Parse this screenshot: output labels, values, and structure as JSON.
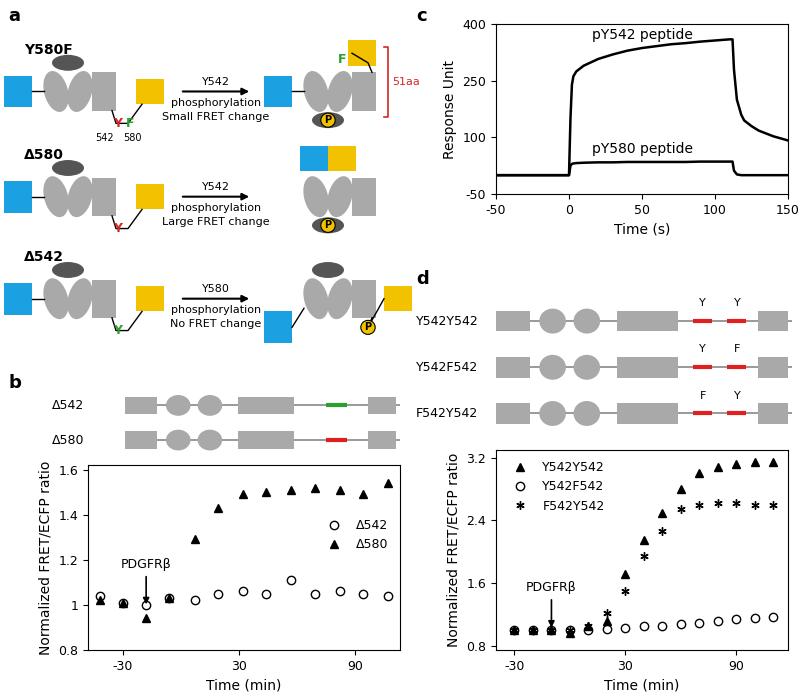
{
  "diagram": {
    "panel_labels": [
      "a",
      "b",
      "c",
      "d"
    ],
    "a": {
      "rows": [
        {
          "name": "Y580F",
          "sites": [
            "542",
            "580"
          ],
          "mutation": "F",
          "mark": "Y",
          "mark_color": "#d62728",
          "arrow_above": "Y542",
          "arrow_below": [
            "phosphorylation",
            "Small FRET change"
          ],
          "linker": "51aa",
          "phospho": "P"
        },
        {
          "name": "Δ580",
          "mark": "Y",
          "mark_color": "#d62728",
          "arrow_above": "Y542",
          "arrow_below": [
            "phosphorylation",
            "Large FRET change"
          ],
          "phospho": "P"
        },
        {
          "name": "Δ542",
          "mark": "Y",
          "mark_color": "#2ca02c",
          "arrow_above": "Y580",
          "arrow_below": [
            "phosphorylation",
            "No FRET change"
          ],
          "phospho": "P"
        }
      ]
    },
    "b": {
      "rows": [
        {
          "name": "Δ542",
          "color": "#2ca02c"
        },
        {
          "name": "Δ580",
          "color": "#e02020"
        }
      ]
    },
    "d": {
      "rows": [
        {
          "name": "Y542Y542",
          "sites": [
            "Y",
            "Y"
          ]
        },
        {
          "name": "Y542F542",
          "sites": [
            "Y",
            "F"
          ]
        },
        {
          "name": "F542Y542",
          "sites": [
            "F",
            "Y"
          ]
        }
      ]
    }
  },
  "chart_data": [
    {
      "type": "scatter",
      "x_label": "Time (min)",
      "y_label": "Normalized FRET/ECFP ratio",
      "x": [
        -42,
        -30,
        -18,
        -6,
        7,
        19,
        32,
        44,
        57,
        69,
        82,
        94,
        107
      ],
      "xlim": [
        -48,
        113
      ],
      "xticks": [
        -30,
        30,
        90
      ],
      "ylim": [
        0.8,
        1.62
      ],
      "yticks": [
        0.8,
        1,
        1.2,
        1.4,
        1.6
      ],
      "legend": "center right",
      "annotations": [
        {
          "text": "PDGFRβ",
          "x": -18,
          "y": 0.99
        }
      ],
      "series": [
        {
          "name": "Δ542",
          "color": "#000000",
          "marker": "circle_open",
          "values": [
            1.04,
            1.01,
            1.0,
            1.03,
            1.02,
            1.05,
            1.06,
            1.05,
            1.11,
            1.05,
            1.06,
            1.05,
            1.04
          ]
        },
        {
          "name": "Δ580",
          "color": "#000000",
          "marker": "triangle",
          "values": [
            1.02,
            1.01,
            0.94,
            1.03,
            1.29,
            1.43,
            1.49,
            1.5,
            1.51,
            1.52,
            1.51,
            1.49,
            1.54
          ]
        }
      ]
    },
    {
      "type": "line",
      "x_label": "Time (s)",
      "y_label": "Response Unit",
      "x": [
        -50,
        -25,
        -1,
        0,
        1,
        2,
        3,
        5,
        10,
        20,
        30,
        40,
        50,
        60,
        70,
        80,
        90,
        100,
        110,
        112,
        113,
        115,
        118,
        120,
        125,
        130,
        140,
        150
      ],
      "xlim": [
        -50,
        150
      ],
      "xticks": [
        -50,
        0,
        50,
        100,
        150
      ],
      "ylim": [
        -50,
        400
      ],
      "yticks": [
        -50,
        100,
        250,
        400
      ],
      "series": [
        {
          "name": "pY542 peptide",
          "color": "#000000",
          "values": [
            0,
            0,
            0,
            0,
            150,
            240,
            262,
            275,
            290,
            308,
            320,
            330,
            337,
            342,
            347,
            350,
            354,
            357,
            360,
            360,
            280,
            200,
            160,
            145,
            130,
            118,
            103,
            92
          ]
        },
        {
          "name": "pY580 peptide",
          "color": "#000000",
          "values": [
            0,
            0,
            0,
            0,
            25,
            30,
            31,
            32,
            33,
            34,
            34,
            35,
            35,
            35,
            35,
            35,
            36,
            36,
            36,
            36,
            12,
            2,
            0,
            0,
            0,
            0,
            0,
            0
          ]
        }
      ]
    },
    {
      "type": "scatter",
      "x_label": "Time (min)",
      "y_label": "Normalized FRET/ECFP ratio",
      "x": [
        -30,
        -20,
        -10,
        0,
        10,
        20,
        30,
        40,
        50,
        60,
        70,
        80,
        90,
        100,
        110
      ],
      "xlim": [
        -40,
        118
      ],
      "xticks": [
        -30,
        30,
        90
      ],
      "ylim": [
        0.75,
        3.3
      ],
      "yticks": [
        0.8,
        1.6,
        2.4,
        3.2
      ],
      "legend": "upper left",
      "annotations": [
        {
          "text": "PDGFRβ",
          "x": -10,
          "y": 1.0
        }
      ],
      "series": [
        {
          "name": "Y542Y542",
          "color": "#000000",
          "marker": "triangle",
          "values": [
            1.0,
            1.0,
            1.0,
            0.97,
            1.05,
            1.12,
            1.72,
            2.15,
            2.5,
            2.8,
            3.0,
            3.08,
            3.12,
            3.15,
            3.15
          ]
        },
        {
          "name": "Y542F542",
          "color": "#000000",
          "marker": "circle_open",
          "values": [
            1.0,
            1.0,
            1.0,
            1.0,
            1.0,
            1.02,
            1.03,
            1.05,
            1.06,
            1.08,
            1.1,
            1.12,
            1.14,
            1.16,
            1.17
          ]
        },
        {
          "name": "F542Y542",
          "color": "#000000",
          "marker": "asterisk",
          "values": [
            1.0,
            1.0,
            1.0,
            1.0,
            1.05,
            1.22,
            1.5,
            1.95,
            2.27,
            2.55,
            2.6,
            2.62,
            2.62,
            2.6,
            2.6
          ]
        }
      ]
    }
  ]
}
